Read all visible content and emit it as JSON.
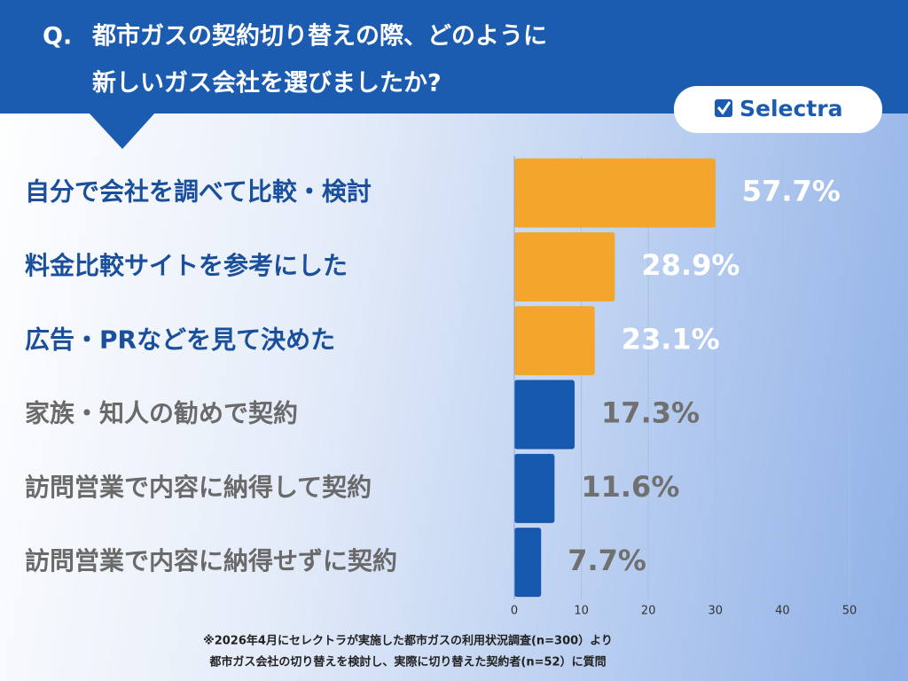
{
  "chart_data": {
    "type": "bar",
    "title_prefix": "Q.",
    "title_lines": [
      "都市ガスの契約切り替えの際、どのように",
      "新しいガス会社を選びましたか?"
    ],
    "brand": "Selectra",
    "categories": [
      "自分で会社を調べて比較・検討",
      "料金比較サイトを参考にした",
      "広告・PRなどを見て決めた",
      "家族・知人の勧めで契約",
      "訪問営業で内容に納得して契約",
      "訪問営業で内容に納得せずに契約"
    ],
    "values": [
      30,
      15,
      12,
      9,
      6,
      4
    ],
    "value_labels": [
      "57.7%",
      "28.9%",
      "23.1%",
      "17.3%",
      "11.6%",
      "7.7%"
    ],
    "colors": [
      "#f4a52b",
      "#f4a52b",
      "#f4a52b",
      "#1658ad",
      "#1658ad",
      "#1658ad"
    ],
    "xlim": [
      0,
      50
    ],
    "xticks": [
      0,
      10,
      20,
      30,
      40,
      50
    ],
    "grid": true,
    "notes": [
      "※2026年4月にセレクトラが実施した都市ガスの利用状況調査(n=300）より",
      "都市ガス会社の切り替えを検討し、実際に切り替えた契約者(n=52）に質問"
    ]
  }
}
